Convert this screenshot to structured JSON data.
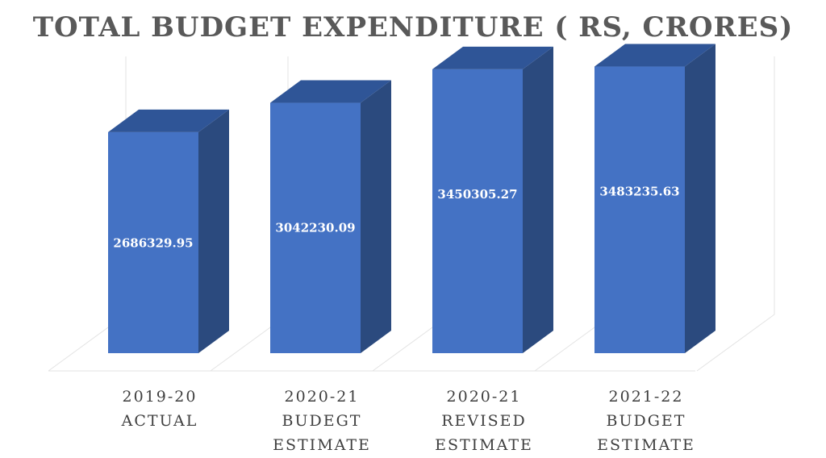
{
  "colors": {
    "bar_front": "#4472C4",
    "bar_side": "#2B4A7E",
    "bar_top": "#2F5597",
    "title": "#595959",
    "category_text": "#3F3F3F",
    "grid": "#E3E3E3",
    "value_label": "#FFFFFF"
  },
  "chart_data": {
    "type": "bar",
    "title": "TOTAL BUDGET EXPENDITURE ( RS, CRORES)",
    "categories": [
      [
        "2019-20",
        "ACTUAL"
      ],
      [
        "2020-21",
        "BUDEGT",
        "ESTIMATE"
      ],
      [
        "2020-21",
        "REVISED",
        "ESTIMATE"
      ],
      [
        "2021-22",
        "BUDGET",
        "ESTIMATE"
      ]
    ],
    "values": [
      2686329.95,
      3042230.09,
      3450305.27,
      3483235.63
    ],
    "data_labels": [
      "2686329.95",
      "3042230.09",
      "3450305.27",
      "3483235.63"
    ],
    "ylim": [
      0,
      3900000
    ],
    "grid": true,
    "legend": false,
    "three_d": true
  }
}
